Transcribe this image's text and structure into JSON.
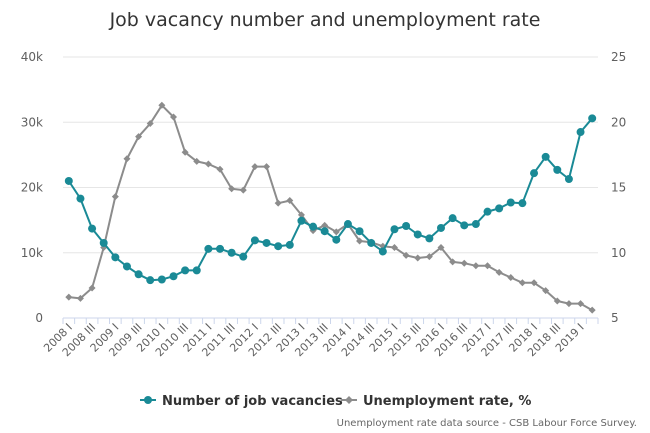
{
  "chart_data": {
    "type": "line",
    "title": "Job vacancy number and unemployment rate",
    "x": [
      "2008 I",
      "2008 II",
      "2008 III",
      "2008 IV",
      "2009 I",
      "2009 II",
      "2009 III",
      "2009 IV",
      "2010 I",
      "2010 II",
      "2010 III",
      "2010 IV",
      "2011 I",
      "2011 II",
      "2011 III",
      "2011 IV",
      "2012 I",
      "2012 II",
      "2012 III",
      "2012 IV",
      "2013 I",
      "2013 II",
      "2013 III",
      "2013 IV",
      "2014 I",
      "2014 II",
      "2014 III",
      "2014 IV",
      "2015 I",
      "2015 II",
      "2015 III",
      "2015 IV",
      "2016 I",
      "2016 II",
      "2016 III",
      "2016 IV",
      "2017 I",
      "2017 II",
      "2017 III",
      "2017 IV",
      "2018 I",
      "2018 II",
      "2018 III",
      "2018 IV",
      "2019 I",
      "2019 II"
    ],
    "x_tick_labels": [
      "2008 I",
      "2008 III",
      "2009 I",
      "2009 III",
      "2010 I",
      "2010 III",
      "2011 I",
      "2011 III",
      "2012 I",
      "2012 III",
      "2013 I",
      "2013 III",
      "2014 I",
      "2014 III",
      "2015 I",
      "2015 III",
      "2016 I",
      "2016 III",
      "2017 I",
      "2017 III",
      "2018 I",
      "2018 III",
      "2019 I"
    ],
    "y_left": {
      "ticks": [
        "0",
        "10k",
        "20k",
        "30k",
        "40k"
      ],
      "range": [
        0,
        40000
      ]
    },
    "y_right": {
      "ticks": [
        "5",
        "10",
        "15",
        "20",
        "25"
      ],
      "range": [
        5,
        25
      ]
    },
    "grid": true,
    "legend_position": "bottom-center",
    "series": [
      {
        "name": "Number of job vacancies",
        "axis": "left",
        "color": "#1a8a96",
        "marker": "circle",
        "values": [
          21000,
          18300,
          13700,
          11500,
          9300,
          7900,
          6700,
          5800,
          5900,
          6400,
          7300,
          7300,
          10600,
          10600,
          10000,
          9400,
          11900,
          11500,
          11000,
          11200,
          14900,
          14000,
          13300,
          12000,
          14400,
          13300,
          11500,
          10200,
          13600,
          14100,
          12800,
          12200,
          13800,
          15300,
          14200,
          14400,
          16300,
          16800,
          17700,
          17600,
          22200,
          24700,
          22700,
          21300,
          28500,
          30600
        ]
      },
      {
        "name": "Unemployment rate, %",
        "axis": "right",
        "color": "#8c8c8c",
        "marker": "diamond",
        "values": [
          6.6,
          6.5,
          7.3,
          10.4,
          14.3,
          17.2,
          18.9,
          19.9,
          21.3,
          20.4,
          17.7,
          17.0,
          16.8,
          16.4,
          14.9,
          14.8,
          16.6,
          16.6,
          13.8,
          14.0,
          12.9,
          11.7,
          12.1,
          11.6,
          12.2,
          10.9,
          10.8,
          10.5,
          10.4,
          9.8,
          9.6,
          9.7,
          10.4,
          9.3,
          9.2,
          9.0,
          9.0,
          8.5,
          8.1,
          7.7,
          7.7,
          7.1,
          6.3,
          6.1,
          6.1,
          5.6
        ]
      }
    ],
    "credits": "Unemployment rate data source - CSB Labour Force Survey."
  }
}
